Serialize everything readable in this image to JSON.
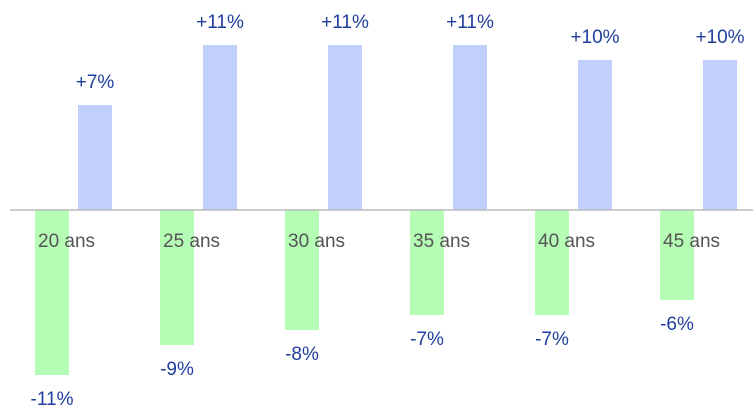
{
  "chart_data": {
    "type": "bar",
    "categories": [
      "20 ans",
      "25 ans",
      "30 ans",
      "35 ans",
      "40 ans",
      "45 ans"
    ],
    "series": [
      {
        "color": "#b5fcb5",
        "values": [
          -11,
          -9,
          -8,
          -7,
          -7,
          -6
        ],
        "value_labels": [
          "-11%",
          "-9%",
          "-8%",
          "-7%",
          "-7%",
          "-6%"
        ]
      },
      {
        "color": "#c1cffc",
        "values": [
          7,
          11,
          11,
          11,
          10,
          10
        ],
        "value_labels": [
          "+7%",
          "+11%",
          "+11%",
          "+11%",
          "+10%",
          "+10%"
        ]
      }
    ]
  }
}
